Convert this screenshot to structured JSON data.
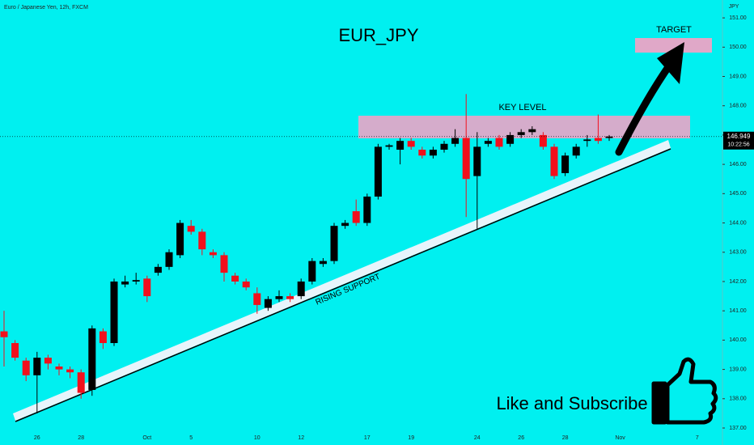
{
  "chart_data": {
    "type": "candlestick",
    "title": "EUR_JPY",
    "subtitle": "Euro / Japanese Yen, 12h, FXCM",
    "y_axis_label": "JPY",
    "categories": [
      null,
      null,
      null,
      "26",
      null,
      null,
      null,
      "28",
      null,
      null,
      null,
      null,
      null,
      "Oct",
      null,
      null,
      null,
      "5",
      null,
      null,
      null,
      null,
      null,
      "10",
      null,
      null,
      null,
      "12",
      null,
      null,
      null,
      null,
      null,
      "17",
      null,
      null,
      null,
      "19",
      null,
      null,
      null,
      null,
      null,
      "24",
      null,
      null,
      null,
      "26",
      null,
      null,
      null,
      "28",
      null,
      null,
      null,
      null,
      "Nov",
      null,
      null,
      null,
      null,
      null,
      null,
      "7"
    ],
    "open": [
      140.3,
      139.9,
      139.3,
      138.8,
      139.4,
      139.1,
      139.0,
      138.9,
      138.3,
      140.3,
      139.9,
      141.9,
      142.0,
      142.1,
      142.3,
      142.5,
      142.9,
      143.9,
      143.7,
      143.0,
      142.9,
      142.2,
      142.0,
      141.6,
      141.1,
      141.4,
      141.5,
      141.5,
      142.0,
      142.6,
      142.7,
      143.9,
      144.4,
      144.0,
      144.9,
      146.6,
      146.5,
      146.8,
      146.5,
      146.3,
      146.5,
      146.7,
      146.9,
      145.6,
      146.7,
      146.9,
      146.7,
      147.0,
      147.1,
      147.0,
      146.6,
      145.7,
      146.3,
      146.8,
      146.9,
      146.9,
      null,
      null,
      null,
      null,
      null,
      null,
      null,
      null
    ],
    "high": [
      141.0,
      140.0,
      139.4,
      139.6,
      139.5,
      139.2,
      139.1,
      139.0,
      140.5,
      140.4,
      142.1,
      142.2,
      142.3,
      142.2,
      142.6,
      143.1,
      144.1,
      144.1,
      143.8,
      143.1,
      143.0,
      142.3,
      142.1,
      141.8,
      141.5,
      141.7,
      141.6,
      142.1,
      142.8,
      142.8,
      144.0,
      144.1,
      144.8,
      145.0,
      146.7,
      146.7,
      146.9,
      146.9,
      146.6,
      146.6,
      146.8,
      147.2,
      148.4,
      147.1,
      146.9,
      147.0,
      147.1,
      147.2,
      147.3,
      147.1,
      146.7,
      146.4,
      146.7,
      147.0,
      147.7,
      147.0,
      null,
      null,
      null,
      null,
      null,
      null,
      null,
      null
    ],
    "low": [
      139.1,
      139.3,
      138.6,
      137.5,
      139.0,
      138.8,
      138.7,
      138.0,
      138.1,
      139.7,
      139.8,
      141.8,
      141.9,
      141.3,
      142.2,
      142.4,
      142.8,
      143.6,
      142.9,
      142.8,
      142.0,
      141.9,
      141.7,
      140.9,
      141.0,
      141.3,
      141.3,
      141.4,
      141.9,
      142.5,
      142.6,
      143.8,
      143.9,
      143.9,
      144.8,
      146.5,
      146.0,
      146.5,
      146.2,
      146.2,
      146.4,
      146.6,
      144.2,
      143.8,
      146.6,
      146.5,
      146.6,
      146.9,
      147.0,
      146.5,
      145.5,
      145.6,
      146.2,
      146.6,
      146.7,
      146.8,
      null,
      null,
      null,
      null,
      null,
      null,
      null,
      null
    ],
    "close": [
      140.1,
      139.4,
      138.8,
      139.4,
      139.2,
      139.0,
      138.9,
      138.2,
      140.4,
      139.9,
      142.0,
      142.0,
      142.05,
      141.5,
      142.5,
      143.0,
      144.0,
      143.7,
      143.1,
      142.9,
      142.3,
      142.0,
      141.8,
      141.2,
      141.4,
      141.5,
      141.4,
      142.0,
      142.7,
      142.7,
      143.9,
      144.0,
      144.0,
      144.9,
      146.6,
      146.65,
      146.8,
      146.6,
      146.3,
      146.5,
      146.7,
      146.9,
      145.5,
      146.6,
      146.8,
      146.6,
      147.0,
      147.1,
      147.2,
      146.6,
      145.6,
      146.3,
      146.6,
      146.85,
      146.8,
      146.949,
      null,
      null,
      null,
      null,
      null,
      null,
      null,
      null
    ],
    "up_color": "#000000",
    "down_color": "#f2101c",
    "ylim": [
      136.42,
      151.61
    ],
    "yticks": [
      {
        "value": 137,
        "label": "137.00"
      },
      {
        "value": 138,
        "label": "138.00"
      },
      {
        "value": 139,
        "label": "139.00"
      },
      {
        "value": 140,
        "label": "140.00"
      },
      {
        "value": 141,
        "label": "141.00"
      },
      {
        "value": 142,
        "label": "142.00"
      },
      {
        "value": 143,
        "label": "143.00"
      },
      {
        "value": 144,
        "label": "144.00"
      },
      {
        "value": 145,
        "label": "145.00"
      },
      {
        "value": 146,
        "label": "146.00"
      },
      {
        "value": 147,
        "label": "147.00"
      },
      {
        "value": 148,
        "label": "148.00"
      },
      {
        "value": 149,
        "label": "149.00"
      },
      {
        "value": 150,
        "label": "150.00"
      },
      {
        "value": 151,
        "label": "151.00"
      }
    ],
    "last_price": 146.949,
    "countdown": "10:22:56",
    "annotations": {
      "key_level": "KEY LEVEL",
      "target": "TARGET",
      "support": "RISING SUPPORT",
      "cta": "Like and Subscribe"
    }
  }
}
